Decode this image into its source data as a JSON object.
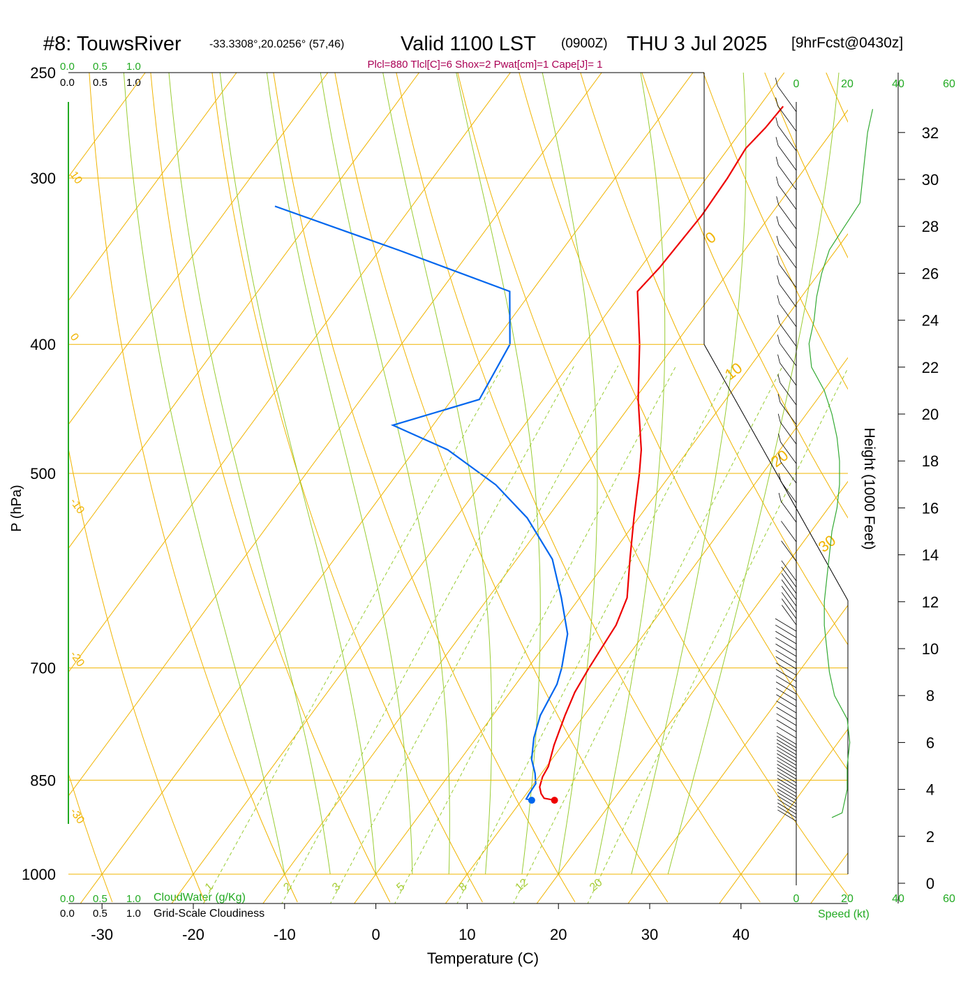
{
  "header": {
    "station": "#8: TouwsRiver",
    "coords": "-33.3308°,20.0256° (57,46)",
    "valid": "Valid 1100 LST",
    "utc": "(0900Z)",
    "date": "THU 3 Jul 2025",
    "forecast": "[9hrFcst@0430z]",
    "indices": "Plcl=880 Tlcl[C]=6 Shox=2 Pwat[cm]=1 Cape[J]= 1"
  },
  "legend": {
    "scale_ticks": [
      "0.0",
      "0.5",
      "1.0"
    ],
    "cloudwater_label": "CloudWater (g/Kg)",
    "cloudiness_label": "Grid-Scale Cloudiness",
    "speed_label": "Speed (kt)"
  },
  "colors": {
    "temperature": "#ee0000",
    "dewpoint": "#0066ee",
    "isotherm": "#f0b400",
    "dry_adiabat": "#f0b400",
    "moist_adiabat": "#99cc33",
    "mixing_ratio": "#99cc33",
    "wind_speed": "#33aa33",
    "indices_text": "#aa0055",
    "legend_green": "#22aa22"
  },
  "chart_data": {
    "type": "line",
    "diagram": "skew-T log-P",
    "xlabel": "Temperature (C)",
    "ylabel": "P (hPa)",
    "y2label": "Height (1000 Feet)",
    "x_ticks": [
      -30,
      -20,
      -10,
      0,
      10,
      20,
      30,
      40
    ],
    "p_ticks": [
      250,
      300,
      400,
      500,
      700,
      850,
      1000
    ],
    "height_ticks_kft": [
      0,
      2,
      4,
      6,
      8,
      10,
      12,
      14,
      16,
      18,
      20,
      22,
      24,
      26,
      28,
      30,
      32
    ],
    "speed_ticks_kt": [
      0,
      20,
      40,
      60
    ],
    "xlim": [
      -34,
      36
    ],
    "plim": [
      1000,
      250
    ],
    "dry_adiabat_labels": [
      {
        "label": "10",
        "value": 10
      },
      {
        "label": "0",
        "value": 0
      },
      {
        "label": "-10",
        "value": -10
      },
      {
        "label": "-20",
        "value": -20
      },
      {
        "label": "-30",
        "value": -30
      }
    ],
    "isotherm_labels": [
      {
        "label": "0",
        "value": 0
      },
      {
        "label": "10",
        "value": 10
      },
      {
        "label": "20",
        "value": 20
      },
      {
        "label": "30",
        "value": 30
      }
    ],
    "mixing_ratio_labels": [
      "1",
      "2",
      "3",
      "5",
      "8",
      "12",
      "20"
    ],
    "series": [
      {
        "name": "Temperature",
        "points": [
          [
            880,
            13.6
          ],
          [
            877,
            12.3
          ],
          [
            870,
            11.6
          ],
          [
            860,
            10.9
          ],
          [
            845,
            10.4
          ],
          [
            830,
            10.2
          ],
          [
            800,
            9.1
          ],
          [
            760,
            7.9
          ],
          [
            730,
            7.1
          ],
          [
            700,
            6.7
          ],
          [
            650,
            6.2
          ],
          [
            620,
            5.2
          ],
          [
            580,
            2.4
          ],
          [
            540,
            -0.5
          ],
          [
            500,
            -3.5
          ],
          [
            480,
            -5.2
          ],
          [
            440,
            -9.6
          ],
          [
            400,
            -13.9
          ],
          [
            365,
            -18.4
          ],
          [
            350,
            -17.9
          ],
          [
            320,
            -17.5
          ],
          [
            300,
            -17.7
          ],
          [
            285,
            -18.1
          ],
          [
            275,
            -17.6
          ],
          [
            265,
            -17.4
          ]
        ]
      },
      {
        "name": "Dewpoint",
        "points": [
          [
            880,
            11.1
          ],
          [
            878,
            10.4
          ],
          [
            870,
            10.3
          ],
          [
            855,
            10.2
          ],
          [
            840,
            9.3
          ],
          [
            820,
            7.8
          ],
          [
            790,
            6.3
          ],
          [
            760,
            5.2
          ],
          [
            720,
            4.5
          ],
          [
            700,
            3.7
          ],
          [
            660,
            1.6
          ],
          [
            620,
            -2.0
          ],
          [
            580,
            -6.1
          ],
          [
            540,
            -12.2
          ],
          [
            510,
            -18.3
          ],
          [
            480,
            -26.4
          ],
          [
            460,
            -34.4
          ],
          [
            440,
            -27.0
          ],
          [
            400,
            -28.1
          ],
          [
            365,
            -32.4
          ],
          [
            340,
            -47.8
          ],
          [
            315,
            -65.0
          ]
        ]
      }
    ],
    "wind_speed_profile_kt": [
      [
        0.0,
        0
      ],
      [
        2.8,
        14
      ],
      [
        3.0,
        18
      ],
      [
        4.0,
        20
      ],
      [
        5.0,
        20
      ],
      [
        6.0,
        21
      ],
      [
        7.0,
        20
      ],
      [
        8.0,
        15
      ],
      [
        9.0,
        13
      ],
      [
        10.0,
        12
      ],
      [
        11.0,
        11
      ],
      [
        12.0,
        11
      ],
      [
        13.0,
        12
      ],
      [
        14.0,
        13
      ],
      [
        15.0,
        14
      ],
      [
        16.0,
        16
      ],
      [
        17.0,
        17
      ],
      [
        18.0,
        17
      ],
      [
        19.0,
        16
      ],
      [
        20.0,
        14
      ],
      [
        21.0,
        11
      ],
      [
        22.0,
        6
      ],
      [
        23.0,
        5
      ],
      [
        24.0,
        7
      ],
      [
        25.0,
        8
      ],
      [
        26.0,
        10
      ],
      [
        27.0,
        13
      ],
      [
        28.0,
        19
      ],
      [
        29.0,
        25
      ],
      [
        30.0,
        26
      ],
      [
        31.0,
        27
      ],
      [
        32.0,
        28
      ],
      [
        33.0,
        30
      ]
    ]
  }
}
